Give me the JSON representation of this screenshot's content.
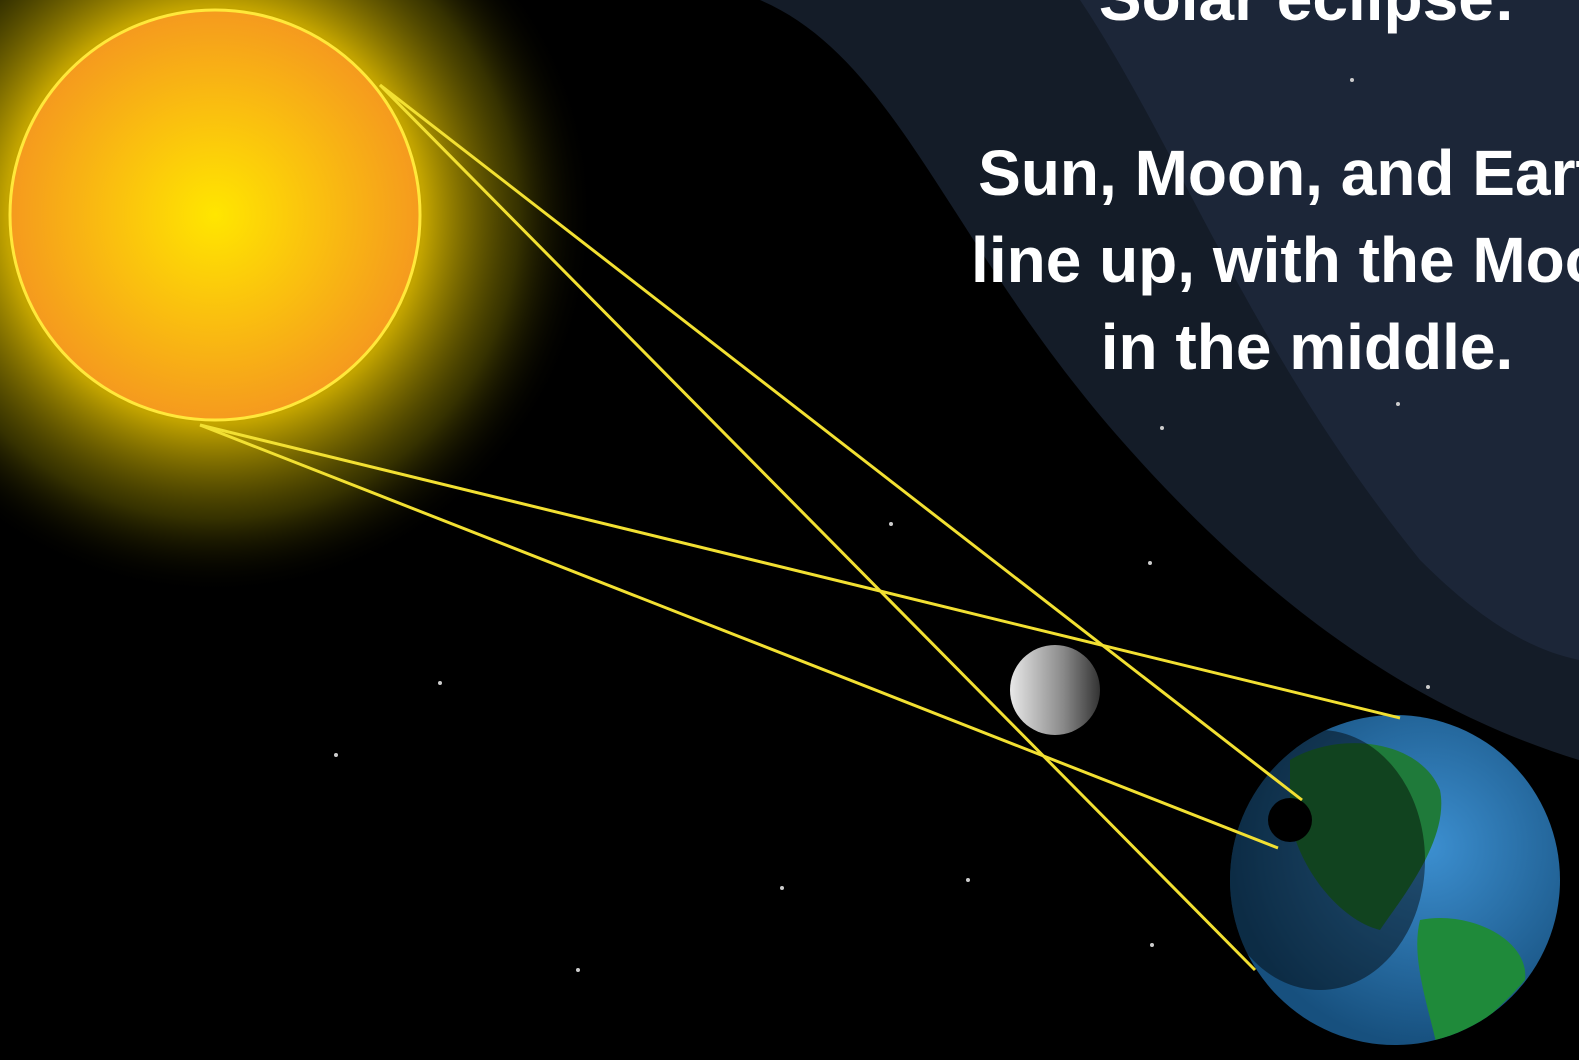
{
  "title": "Solar eclipse:",
  "caption": {
    "lines": [
      "Sun, Moon, and Earth",
      "line up, with the Moon",
      "in the middle."
    ]
  }
}
